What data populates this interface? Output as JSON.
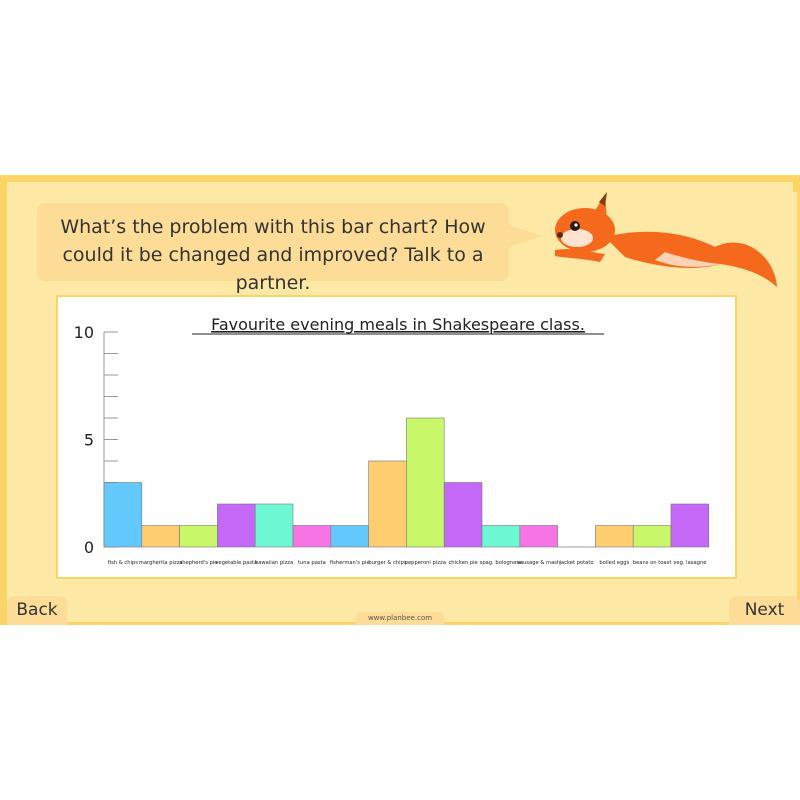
{
  "question": "What’s the problem with this bar chart? How could it be changed and improved? Talk to a partner.",
  "nav": {
    "back_label": "Back",
    "next_label": "Next"
  },
  "footer": {
    "url": "www.planbee.com"
  },
  "colors": {
    "frame": "#fbd468",
    "panel": "#fde8a6",
    "bubble": "#fcdc96",
    "squirrel": "#f5691c"
  },
  "chart_data": {
    "type": "bar",
    "title": "Favourite evening meals in Shakespeare class.",
    "xlabel": "",
    "ylabel": "",
    "ylim": [
      0,
      10
    ],
    "yticks": [
      0,
      5,
      10
    ],
    "grid": false,
    "categories": [
      "fish & chips",
      "margherita pizza",
      "shepherd's pie",
      "vegetable pasta",
      "hawaiian pizza",
      "tuna pasta",
      "fisherman's pie",
      "burger & chips",
      "pepperoni pizza",
      "chicken pie",
      "spag. bolognese",
      "sausage & mash",
      "jacket potato",
      "boiled eggs",
      "beans on toast",
      "veg. lasagne"
    ],
    "values": [
      3,
      1,
      1,
      2,
      2,
      1,
      1,
      4,
      6,
      3,
      1,
      1,
      0,
      1,
      1,
      2
    ],
    "bar_colors": [
      "#63c8fb",
      "#fdcd70",
      "#c8f76a",
      "#c567f7",
      "#6df7d3",
      "#f674e3",
      "#63c8fb",
      "#fdcd70",
      "#c8f76a",
      "#c567f7",
      "#6df7d3",
      "#f674e3",
      "#63c8fb",
      "#fdcd70",
      "#c8f76a",
      "#c567f7"
    ]
  }
}
